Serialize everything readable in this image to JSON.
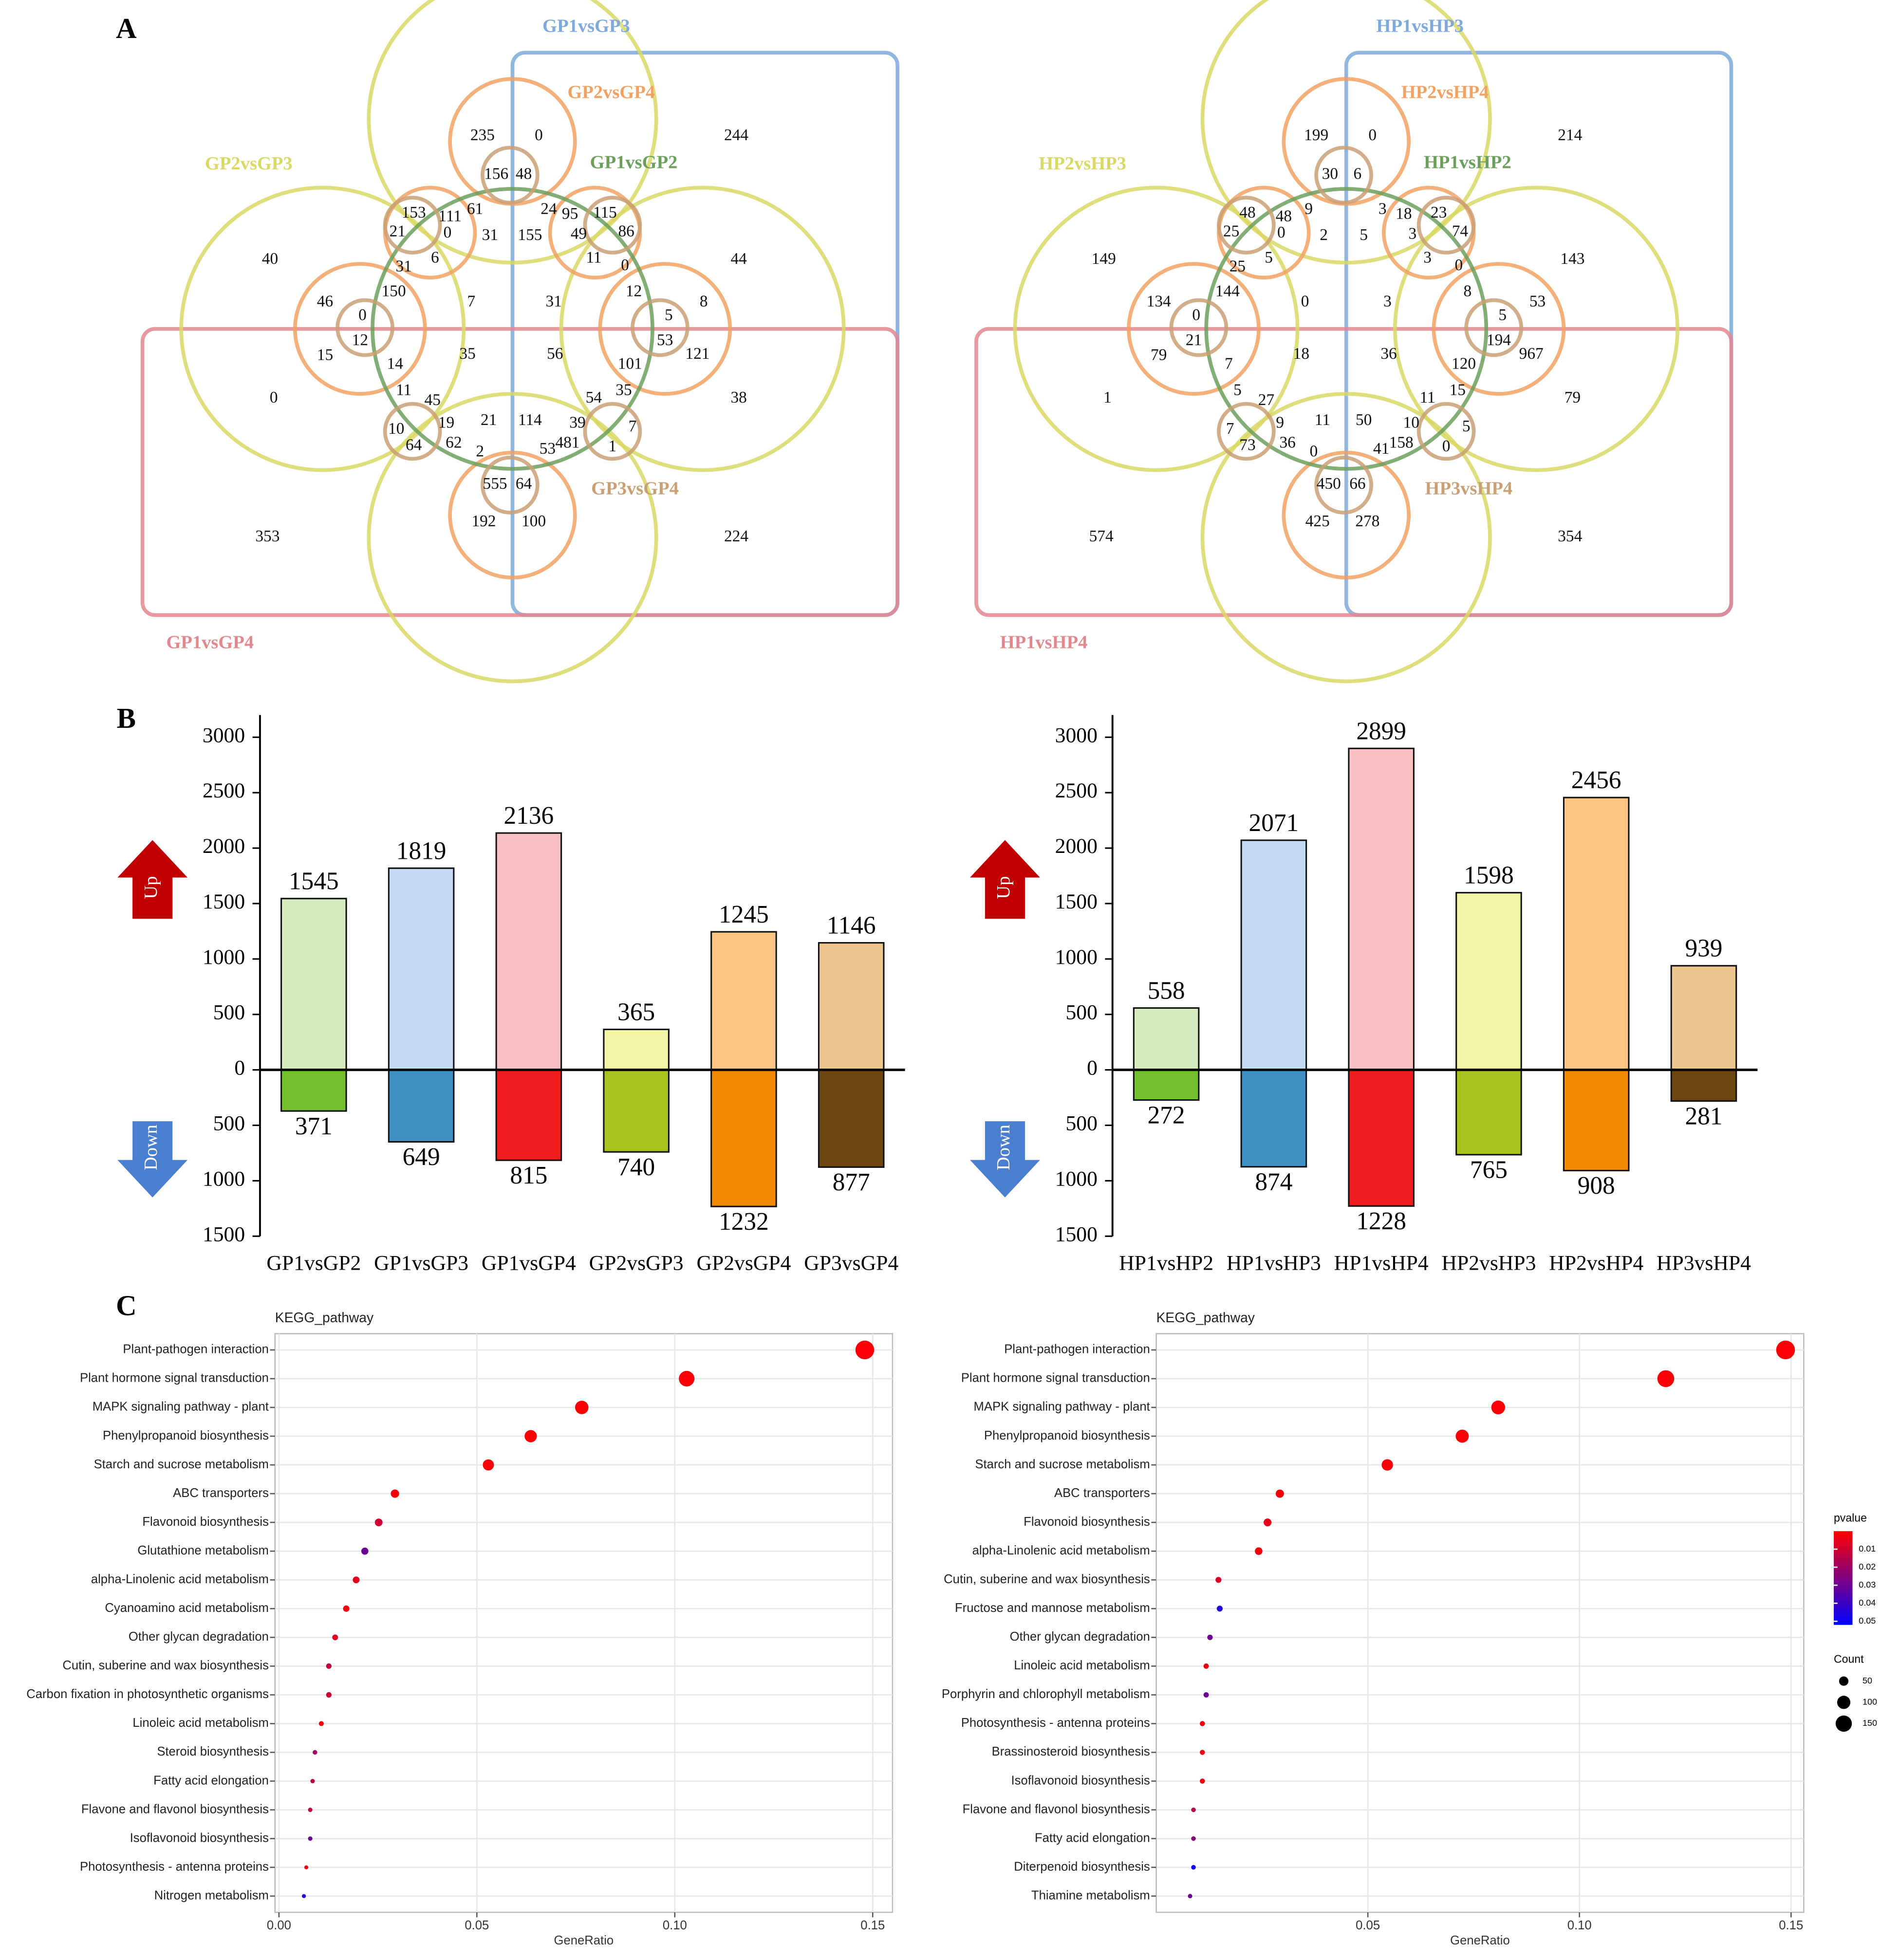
{
  "panels": [
    "A",
    "B",
    "C"
  ],
  "chart_data": [
    {
      "type": "venn",
      "sets": [
        {
          "name": "GP1vsGP3",
          "color": "#7ea9da"
        },
        {
          "name": "GP2vsGP4",
          "color": "#f1a263"
        },
        {
          "name": "GP2vsGP3",
          "color": "#d9d865"
        },
        {
          "name": "GP1vsGP2",
          "color": "#6c9f5c"
        },
        {
          "name": "GP3vsGP4",
          "color": "#c9a074"
        },
        {
          "name": "GP1vsGP4",
          "color": "#e3878f"
        }
      ],
      "values": [
        235,
        0,
        244,
        156,
        48,
        153,
        111,
        61,
        24,
        95,
        115,
        21,
        0,
        31,
        155,
        49,
        86,
        40,
        6,
        11,
        44,
        31,
        0,
        150,
        12,
        46,
        0,
        7,
        31,
        8,
        5,
        12,
        53,
        15,
        35,
        56,
        121,
        14,
        101,
        0,
        11,
        45,
        54,
        35,
        38,
        10,
        19,
        21,
        114,
        39,
        7,
        64,
        62,
        2,
        53,
        481,
        1,
        555,
        64,
        192,
        100,
        353,
        224
      ]
    },
    {
      "type": "venn",
      "sets": [
        {
          "name": "HP1vsHP3",
          "color": "#7ea9da"
        },
        {
          "name": "HP2vsHP4",
          "color": "#f1a263"
        },
        {
          "name": "HP2vsHP3",
          "color": "#d9d865"
        },
        {
          "name": "HP1vsHP2",
          "color": "#6c9f5c"
        },
        {
          "name": "HP3vsHP4",
          "color": "#c9a074"
        },
        {
          "name": "HP1vsHP4",
          "color": "#e3878f"
        }
      ],
      "values": [
        199,
        0,
        214,
        30,
        6,
        48,
        48,
        9,
        3,
        18,
        23,
        25,
        0,
        2,
        5,
        3,
        74,
        149,
        5,
        3,
        143,
        25,
        0,
        144,
        8,
        134,
        0,
        0,
        3,
        53,
        5,
        21,
        194,
        79,
        18,
        36,
        967,
        7,
        120,
        1,
        5,
        27,
        11,
        15,
        79,
        7,
        9,
        11,
        50,
        10,
        5,
        73,
        36,
        0,
        41,
        158,
        0,
        450,
        66,
        425,
        278,
        574,
        354
      ]
    },
    {
      "type": "bar",
      "categories": [
        "GP1vsGP2",
        "GP1vsGP3",
        "GP1vsGP4",
        "GP2vsGP3",
        "GP2vsGP4",
        "GP3vsGP4"
      ],
      "series": [
        {
          "name": "Up",
          "color": "#c00000",
          "colors": [
            "#d5ecbf",
            "#c5daf0",
            "#fbbfc1",
            "#f0f6a6",
            "#fcc483",
            "#ecc68c"
          ],
          "values": [
            1545,
            1819,
            2136,
            365,
            1245,
            1146
          ]
        },
        {
          "name": "Down",
          "color": "#4a7fcf",
          "colors": [
            "#72c02c",
            "#3d8fc4",
            "#ee1c1c",
            "#a8c11d",
            "#f28b00",
            "#6b4610"
          ],
          "values": [
            -371,
            -649,
            -815,
            -740,
            -1232,
            -877
          ],
          "value_labels": [
            "371",
            "649",
            "815",
            "740",
            "1232",
            "877"
          ]
        }
      ],
      "ylim": [
        -1500,
        3200
      ],
      "yticks": [
        {
          "value": -1500,
          "label": "1500"
        },
        {
          "value": -1000,
          "label": "1000"
        },
        {
          "value": -500,
          "label": "500"
        },
        0,
        500,
        1000,
        1500,
        2000,
        2500,
        3000
      ]
    },
    {
      "type": "bar",
      "categories": [
        "HP1vsHP2",
        "HP1vsHP3",
        "HP1vsHP4",
        "HP2vsHP3",
        "HP2vsHP4",
        "HP3vsHP4"
      ],
      "series": [
        {
          "name": "Up",
          "color": "#c00000",
          "colors": [
            "#d5ecbf",
            "#c5daf0",
            "#fbbfc1",
            "#f0f6a6",
            "#fcc483",
            "#ecc68c"
          ],
          "values": [
            558,
            2071,
            2899,
            1598,
            2456,
            939
          ]
        },
        {
          "name": "Down",
          "color": "#4a7fcf",
          "colors": [
            "#72c02c",
            "#3d8fc4",
            "#ee1c1c",
            "#a8c11d",
            "#f28b00",
            "#6b4610"
          ],
          "values": [
            -272,
            -874,
            -1228,
            -765,
            -908,
            -281
          ],
          "value_labels": [
            "272",
            "874",
            "1228",
            "765",
            "908",
            "281"
          ]
        }
      ],
      "ylim": [
        -1500,
        3200
      ],
      "yticks": [
        {
          "value": -1500,
          "label": "1500"
        },
        {
          "value": -1000,
          "label": "1000"
        },
        {
          "value": -500,
          "label": "500"
        },
        0,
        500,
        1000,
        1500,
        2000,
        2500,
        3000
      ]
    },
    {
      "type": "dot",
      "title": "KEGG_pathway",
      "x_label": "GeneRatio",
      "categories": [
        "Plant-pathogen interaction",
        "Plant hormone signal transduction",
        "MAPK signaling pathway - plant",
        "Phenylpropanoid biosynthesis",
        "Starch and sucrose metabolism",
        "ABC transporters",
        "Flavonoid biosynthesis",
        "Glutathione metabolism",
        "alpha-Linolenic acid metabolism",
        "Cyanoamino acid metabolism",
        "Other glycan degradation",
        "Cutin, suberine and wax biosynthesis",
        "Carbon fixation in photosynthetic organisms",
        "Linoleic acid metabolism",
        "Steroid biosynthesis",
        "Fatty acid elongation",
        "Flavone and flavonol biosynthesis",
        "Isoflavonoid biosynthesis",
        "Photosynthesis - antenna proteins",
        "Nitrogen metabolism"
      ],
      "x": [
        0.148,
        0.103,
        0.0765,
        0.0636,
        0.0529,
        0.0293,
        0.0252,
        0.0217,
        0.0195,
        0.017,
        0.0142,
        0.0126,
        0.0126,
        0.0107,
        0.0091,
        0.0085,
        0.0079,
        0.0079,
        0.0069,
        0.0063
      ],
      "count": [
        200,
        139,
        103,
        86,
        71,
        40,
        34,
        29,
        26,
        23,
        19,
        17,
        17,
        14,
        12,
        11,
        11,
        11,
        9,
        9
      ],
      "pvalue": [
        0.001,
        0.001,
        0.001,
        0.001,
        0.001,
        0.002,
        0.01,
        0.03,
        0.005,
        0.004,
        0.006,
        0.012,
        0.01,
        0.003,
        0.02,
        0.015,
        0.012,
        0.03,
        0.002,
        0.045
      ],
      "xlim": [
        -0.001,
        0.155
      ],
      "xticks": [
        {
          "value": 0,
          "label": "0.00"
        },
        0.05,
        {
          "value": 0.1,
          "label": "0.10"
        },
        0.15
      ],
      "color_range": [
        0,
        0.052
      ],
      "colors": [
        "#ff0000",
        "#0000ff"
      ]
    },
    {
      "type": "dot",
      "title": "KEGG_pathway",
      "x_label": "GeneRatio",
      "categories": [
        "Plant-pathogen interaction",
        "Plant hormone signal transduction",
        "MAPK signaling pathway - plant",
        "Phenylpropanoid biosynthesis",
        "Starch and sucrose metabolism",
        "ABC transporters",
        "Flavonoid biosynthesis",
        "alpha-Linolenic acid metabolism",
        "Cutin, suberine and wax biosynthesis",
        "Fructose and mannose metabolism",
        "Other glycan degradation",
        "Linoleic acid metabolism",
        "Porphyrin and chlorophyll metabolism",
        "Photosynthesis - antenna proteins",
        "Brassinosteroid biosynthesis",
        "Isoflavonoid biosynthesis",
        "Flavone and flavonol biosynthesis",
        "Fatty acid elongation",
        "Diterpenoid biosynthesis",
        "Thiamine metabolism"
      ],
      "x": [
        0.1487,
        0.1204,
        0.0808,
        0.0723,
        0.0546,
        0.0292,
        0.0263,
        0.0242,
        0.0147,
        0.015,
        0.0127,
        0.0118,
        0.0118,
        0.0109,
        0.0109,
        0.0109,
        0.0088,
        0.0088,
        0.0088,
        0.008
      ],
      "count": [
        200,
        162,
        109,
        98,
        74,
        39,
        35,
        33,
        20,
        20,
        17,
        16,
        16,
        15,
        15,
        15,
        12,
        12,
        12,
        11
      ],
      "pvalue": [
        0.001,
        0.001,
        0.001,
        0.001,
        0.001,
        0.002,
        0.005,
        0.002,
        0.008,
        0.045,
        0.03,
        0.005,
        0.03,
        0.003,
        0.004,
        0.004,
        0.015,
        0.025,
        0.05,
        0.03
      ],
      "xlim": [
        0,
        0.153
      ],
      "xticks": [
        0.05,
        {
          "value": 0.1,
          "label": "0.10"
        },
        0.15
      ],
      "color_range": [
        0,
        0.052
      ],
      "colors": [
        "#ff0000",
        "#0000ff"
      ],
      "legend": {
        "color_title": "pvalue",
        "color_ticks": [
          0.01,
          0.02,
          0.03,
          0.04,
          0.05
        ],
        "size_title": "Count",
        "size_ticks": [
          50,
          100,
          150
        ]
      }
    }
  ]
}
